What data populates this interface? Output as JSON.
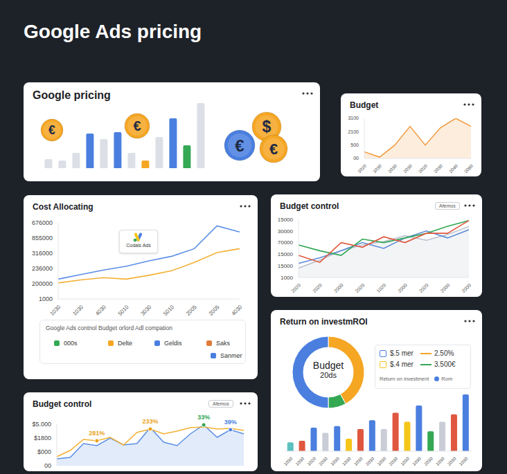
{
  "title": "Google Ads pricing",
  "chart_data": [
    {
      "type": "bar",
      "title": "Google pricing",
      "categories": [
        null,
        null,
        null,
        null,
        null,
        null,
        null,
        null,
        null,
        null,
        null,
        null
      ],
      "values": [
        13,
        11,
        22,
        50,
        42,
        52,
        22,
        11,
        45,
        72,
        33,
        94
      ],
      "colors": [
        "#dcdfe5",
        "#dcdfe5",
        "#dcdfe5",
        "#4a7fe0",
        "#dcdfe5",
        "#4a7fe0",
        "#dcdfe5",
        "#f5a623",
        "#dcdfe5",
        "#4a7fe0",
        "#34a853",
        "#dcdfe5"
      ],
      "tick_labels": false,
      "coins": [
        "€",
        "€",
        "€",
        "$",
        "€"
      ]
    },
    {
      "type": "area",
      "title": "Budget",
      "categories": [
        "1020",
        "1030",
        "2030",
        "2030",
        "2020",
        "2030",
        "2040",
        "2080"
      ],
      "y_categories": [
        "00",
        "500",
        "2100",
        "3100"
      ],
      "values": [
        0.5,
        0.1,
        1.0,
        2.4,
        1.0,
        2.3,
        3.0,
        2.4
      ],
      "color": "#f09a3e"
    },
    {
      "type": "line",
      "title": "Cost Allocating",
      "categories": [
        "1030",
        "1030",
        "4030",
        "5010",
        "3030",
        "5010",
        "2005",
        "2005",
        "4030"
      ],
      "y_categories": [
        "1000",
        "200000",
        "236000",
        "316000",
        "855000",
        "676000"
      ],
      "series": [
        {
          "color": "#5b8ee6",
          "values": [
            1.3,
            1.6,
            1.9,
            2.15,
            2.5,
            2.8,
            3.3,
            4.8,
            4.4
          ]
        },
        {
          "color": "#f2b134",
          "values": [
            1.05,
            1.25,
            1.4,
            1.3,
            1.55,
            1.85,
            2.4,
            3.05,
            3.3
          ]
        }
      ],
      "badge": "Codals Ads",
      "legend_box": {
        "title": "Google Ads contnol Budget orlord Adl compation",
        "items": [
          {
            "label": "000s",
            "color": "#34a853"
          },
          {
            "label": "Delte",
            "color": "#f5a623"
          },
          {
            "label": "Geldis",
            "color": "#4a7fe0"
          },
          {
            "label": "Saks",
            "color": "#e07b39"
          },
          {
            "label": "Sanmer",
            "color": "#4a7fe0"
          }
        ]
      }
    },
    {
      "type": "line",
      "title": "Budget control",
      "button": "Afemos",
      "categories": [
        "2020",
        "2020",
        "2000",
        "2020",
        "1020",
        "2000",
        "2020",
        "2000",
        "2000"
      ],
      "y_categories": [
        "1000",
        "15000",
        "15000",
        "70000",
        "30000",
        "15000"
      ],
      "series": [
        {
          "type": "area",
          "color": "#b8c0cc",
          "values": [
            0.8,
            1.5,
            2.3,
            2.8,
            3.1,
            3.6,
            3.2,
            3.7,
            4.4
          ]
        },
        {
          "type": "line",
          "color": "#5b8ad6",
          "values": [
            1.2,
            1.7,
            2.3,
            3.0,
            2.5,
            3.4,
            4.0,
            3.4,
            4.1
          ]
        },
        {
          "type": "line",
          "color": "#2ea653",
          "values": [
            2.8,
            2.3,
            1.9,
            3.3,
            3.0,
            3.4,
            3.8,
            4.4,
            4.9
          ]
        },
        {
          "type": "line",
          "color": "#e0573f",
          "values": [
            1.9,
            1.3,
            3.0,
            2.6,
            3.5,
            3.0,
            3.8,
            3.8,
            4.9
          ]
        }
      ]
    },
    {
      "type": "pie",
      "title": "Return on investmROI",
      "values": [
        42,
        8,
        50
      ],
      "colors": [
        "#f5a623",
        "#34a853",
        "#4a7fe0"
      ],
      "center_text": [
        "Budget",
        "20ds"
      ],
      "legend_box": {
        "items": [
          {
            "label": "$.5 mer",
            "color": "#4a7fe0",
            "value": "2.50%",
            "value_color": "#f5a623"
          },
          {
            "label": "$.4 mer",
            "color": "#f5c518",
            "value": "3.500€",
            "value_color": "#34a853"
          }
        ],
        "footer": {
          "text": "Return on investment",
          "tag": "Rom",
          "tag_color": "#4a7fe0"
        }
      }
    },
    {
      "type": "bar",
      "categories": [
        "1030",
        "1030",
        "1020",
        "2030",
        "1030",
        "1030",
        "1030",
        "2030",
        "1030",
        "2030",
        "1030",
        "1030",
        "2030",
        "1030",
        "2030",
        "1030"
      ],
      "values": [
        12,
        14,
        32,
        25,
        34,
        17,
        30,
        42,
        30,
        52,
        40,
        62,
        27,
        40,
        50,
        77
      ],
      "colors": [
        "#5bc0be",
        "#e0573f",
        "#4a7fe0",
        "#c8cdd6",
        "#4a7fe0",
        "#f5c518",
        "#e0573f",
        "#4a7fe0",
        "#c8cdd6",
        "#e0573f",
        "#f5c518",
        "#4a7fe0",
        "#34a853",
        "#c8cdd6",
        "#e0573f",
        "#4a7fe0"
      ],
      "tick_labels": "x"
    },
    {
      "type": "line",
      "title": "Budget control",
      "button": "Afemos",
      "categories": [
        null,
        null,
        null,
        null,
        null,
        null,
        null,
        null,
        null,
        null,
        null,
        null,
        null,
        null,
        null
      ],
      "tick_labels": "y",
      "y_categories": [
        "00",
        "$000",
        "$1800",
        "$5.000"
      ],
      "series": [
        {
          "type": "area",
          "color": "#5b8ee6",
          "values": [
            0.5,
            0.6,
            1.6,
            1.45,
            2.0,
            1.5,
            1.6,
            2.75,
            1.7,
            1.45,
            2.3,
            2.95,
            2.05,
            2.6,
            2.3
          ]
        },
        {
          "type": "line",
          "color": "#f2b134",
          "values": [
            0.65,
            1.1,
            1.9,
            1.8,
            2.05,
            1.5,
            2.4,
            2.65,
            2.3,
            2.5,
            2.75,
            2.8,
            2.65,
            2.7,
            2.55
          ]
        }
      ],
      "annotations": [
        {
          "text": "281%",
          "x": 3,
          "y": 1.8,
          "color": "#e8a21a"
        },
        {
          "text": "233%",
          "x": 7,
          "y": 2.65,
          "color": "#e8a21a"
        },
        {
          "text": "33%",
          "x": 11,
          "y": 2.95,
          "color": "#2ea653"
        },
        {
          "text": "39%",
          "x": 13,
          "y": 2.6,
          "color": "#4a7fe0"
        }
      ]
    }
  ]
}
